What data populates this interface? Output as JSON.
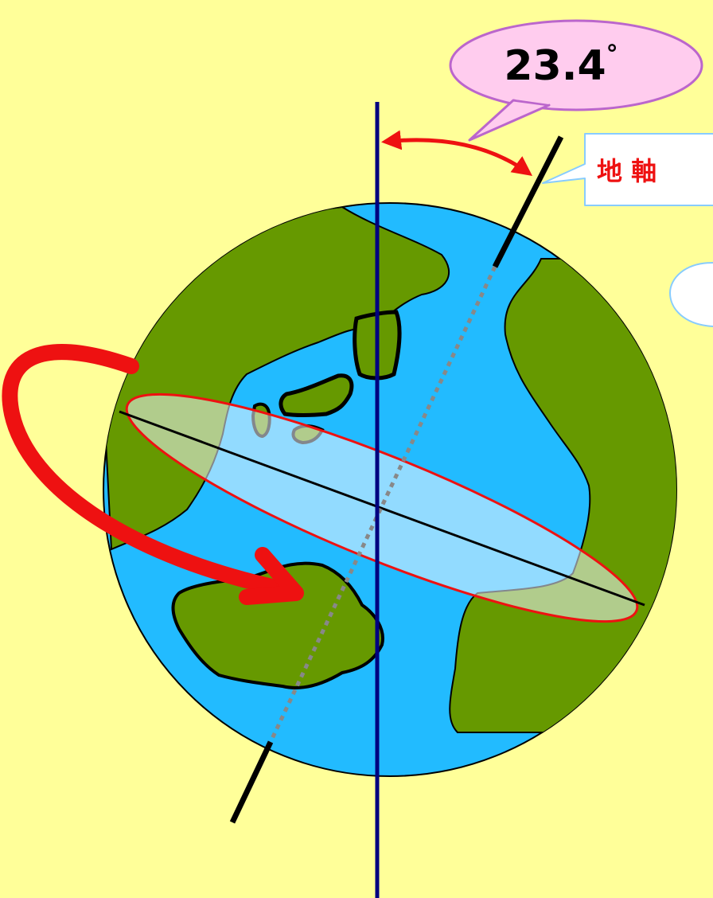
{
  "angle_label": {
    "value": "23.4",
    "unit": "°"
  },
  "axis_label": "地 軸",
  "colors": {
    "background": "#ffff99",
    "ocean": "#22bbff",
    "land": "#669900",
    "equator_band": "#b9ef9a",
    "rotation_arrow": "#ee1111",
    "vertical_line": "#000080",
    "callout_fill": "#ffccee",
    "callout_stroke": "#bb66cc",
    "label_text": "#ee1111"
  }
}
